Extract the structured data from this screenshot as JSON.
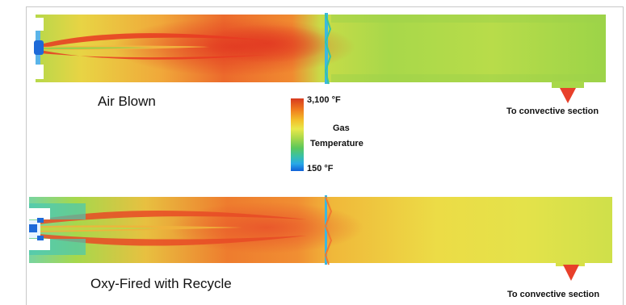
{
  "cases": [
    {
      "label": "Air Blown",
      "outlet_label": "To convective section"
    },
    {
      "label": "Oxy-Fired with Recycle",
      "outlet_label": "To convective section"
    }
  ],
  "legend": {
    "max_label": "3,100 °F",
    "min_label": "150 °F",
    "title_line1": "Gas",
    "title_line2": "Temperature",
    "colors": [
      "#d73a1f",
      "#f07a1e",
      "#f3c02a",
      "#e9e84a",
      "#a8d84a",
      "#5cc85a",
      "#38c0a8",
      "#28a8e8",
      "#1060d8"
    ]
  },
  "colors": {
    "hot": "#e8472a",
    "warm": "#f3a43a",
    "yellow": "#e6e24c",
    "green": "#9cd24a",
    "cool": "#42c8b4",
    "cold": "#1e6ad8",
    "outlet": "#e8402a"
  }
}
